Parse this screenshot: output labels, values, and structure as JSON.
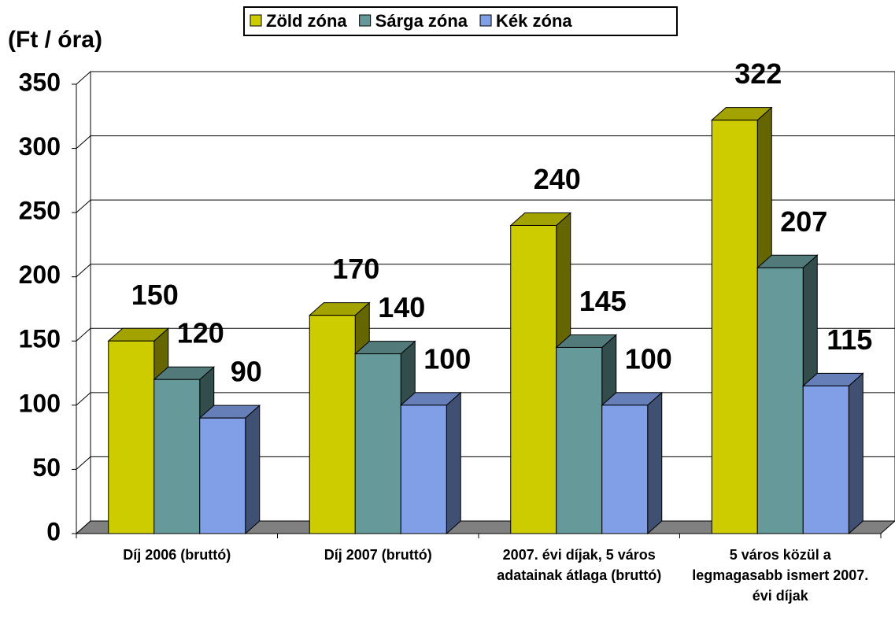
{
  "chart_data": {
    "type": "bar3d",
    "y_label": "(Ft / óra)",
    "categories": [
      "Díj 2006 (bruttó)",
      "Díj 2007 (bruttó)",
      "2007. évi díjak, 5 város adatainak átlaga (bruttó)",
      "5 város közül a legmagasabb ismert 2007. évi díjak"
    ],
    "series": [
      {
        "name": "Zöld zóna",
        "color": "#cccc00",
        "values": [
          150,
          170,
          240,
          322
        ]
      },
      {
        "name": "Sárga zóna",
        "color": "#669999",
        "values": [
          120,
          140,
          145,
          207
        ]
      },
      {
        "name": "Kék zóna",
        "color": "#809fe6",
        "values": [
          90,
          100,
          100,
          115
        ]
      }
    ],
    "ylim": [
      0,
      350
    ],
    "yticks": [
      0,
      50,
      100,
      150,
      200,
      250,
      300,
      350
    ],
    "grid": true,
    "legend": "top"
  }
}
